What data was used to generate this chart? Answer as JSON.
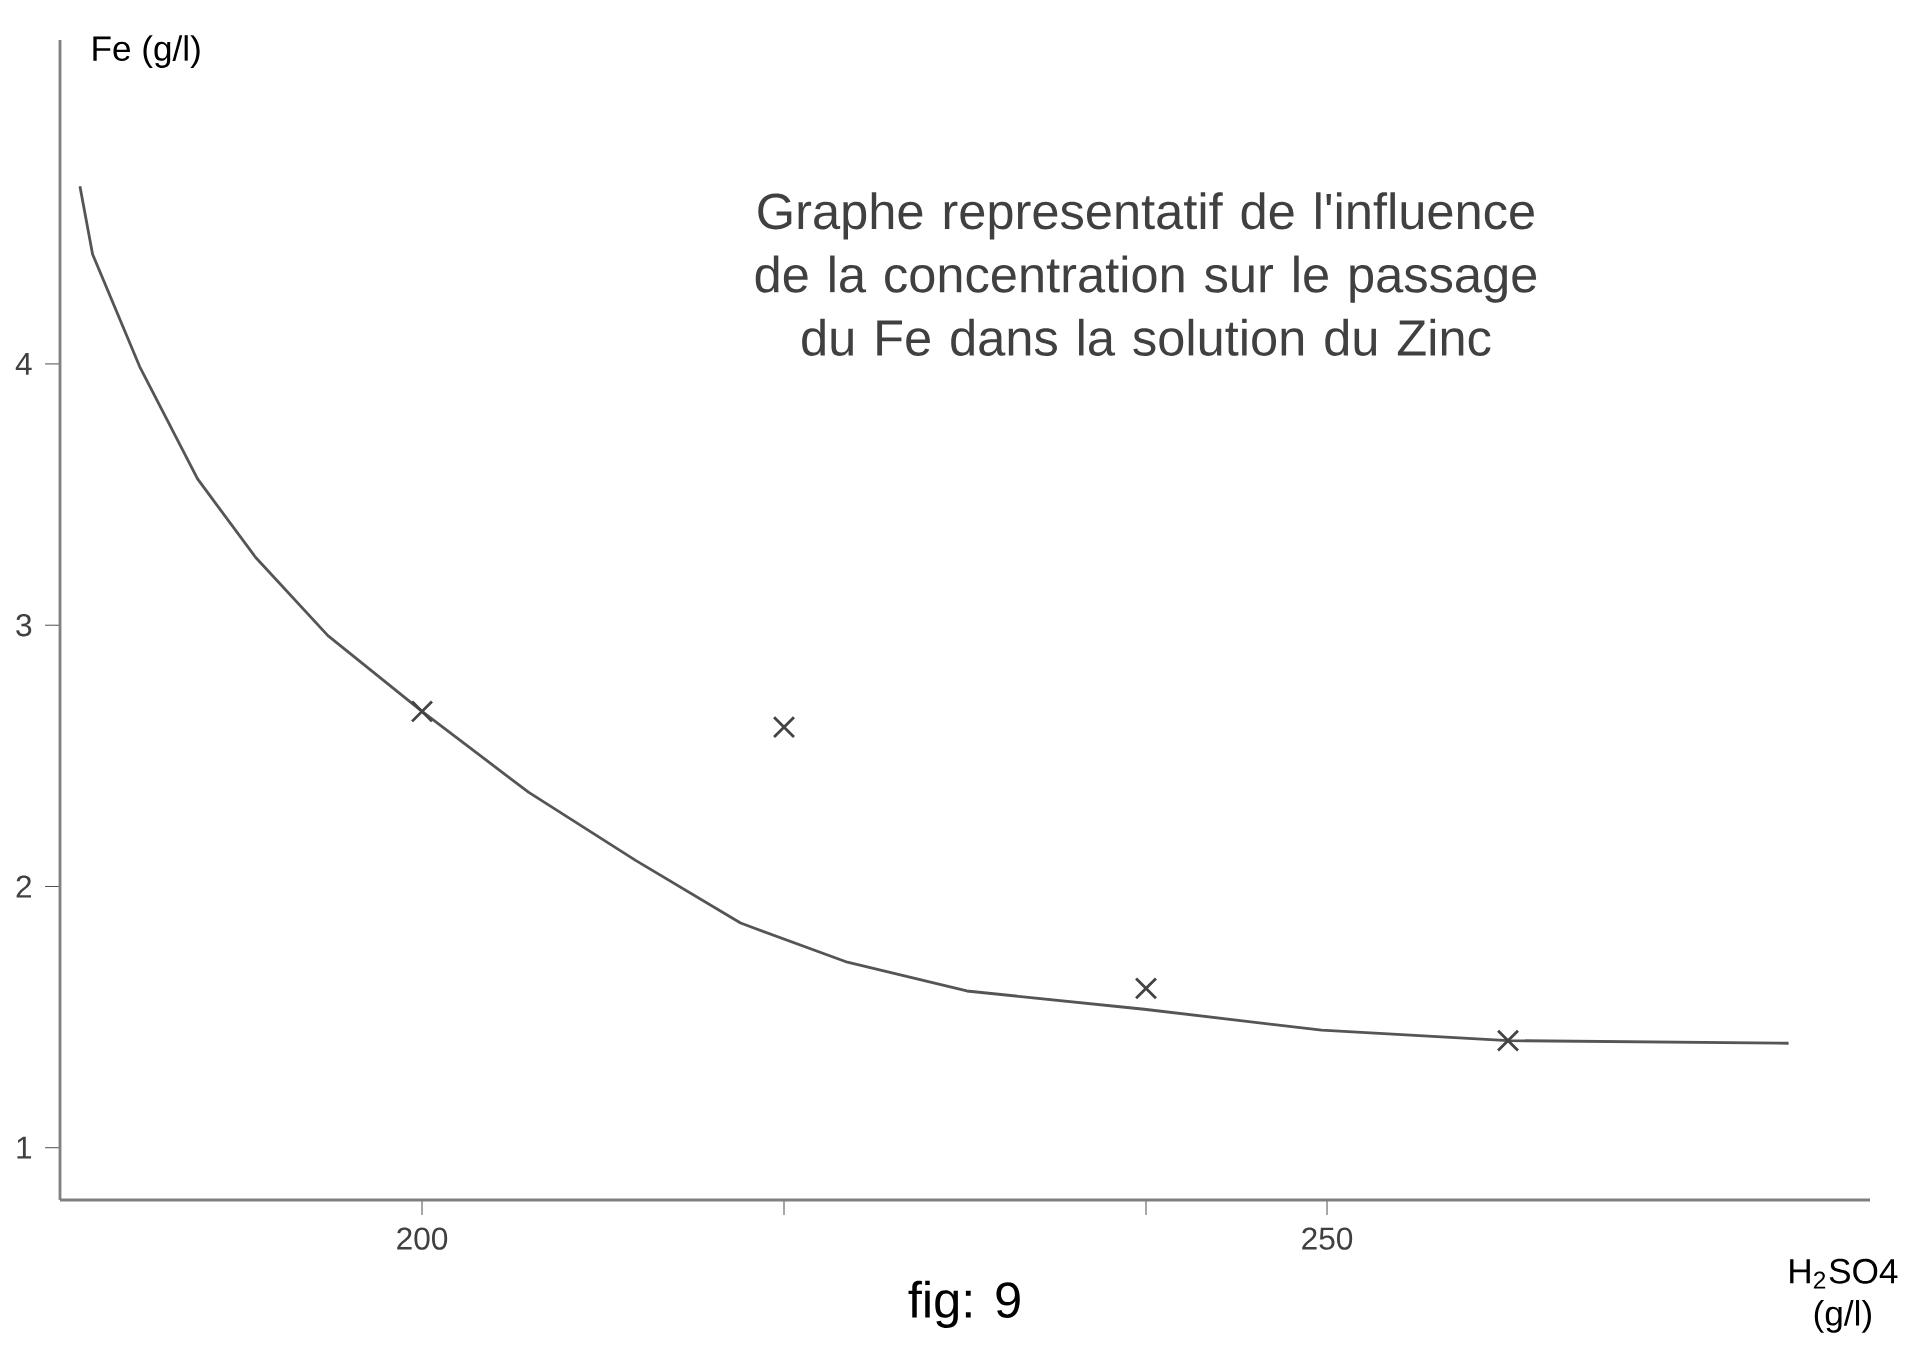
{
  "chart_data": {
    "type": "line",
    "title": "Graphe representatif de l'influence de la concentration sur le passage du Fe dans la solution du Zinc",
    "xlabel": "H$_{2}$SO4 (g/l)",
    "ylabel": "Fe (g/l)",
    "annotations": [
      "fig: 9"
    ],
    "xlim": [
      180,
      280
    ],
    "ylim": [
      0.8,
      5.24
    ],
    "xticks": [
      200,
      {
        "value": 220,
        "label": null
      },
      {
        "value": 240,
        "label": null
      },
      250
    ],
    "yticks": [
      1,
      2,
      3,
      4
    ],
    "grid": false,
    "series": [
      {
        "color": "#555555",
        "marker": "none",
        "line_style": "solid",
        "x": [
          181.1,
          181.8,
          184.4,
          187.6,
          190.8,
          194.8,
          200,
          205.9,
          211.8,
          217.6,
          223.5,
          230.1,
          239.9,
          249.7,
          260,
          275.5
        ],
        "values": [
          4.68,
          4.42,
          3.99,
          3.56,
          3.26,
          2.96,
          2.67,
          2.36,
          2.1,
          1.86,
          1.71,
          1.6,
          1.53,
          1.45,
          1.41,
          1.4
        ]
      },
      {
        "type": "scatter",
        "color": "#444444",
        "marker": "cross",
        "x": [
          200,
          220,
          240,
          260
        ],
        "values": [
          2.67,
          2.61,
          1.61,
          1.41
        ]
      }
    ]
  }
}
